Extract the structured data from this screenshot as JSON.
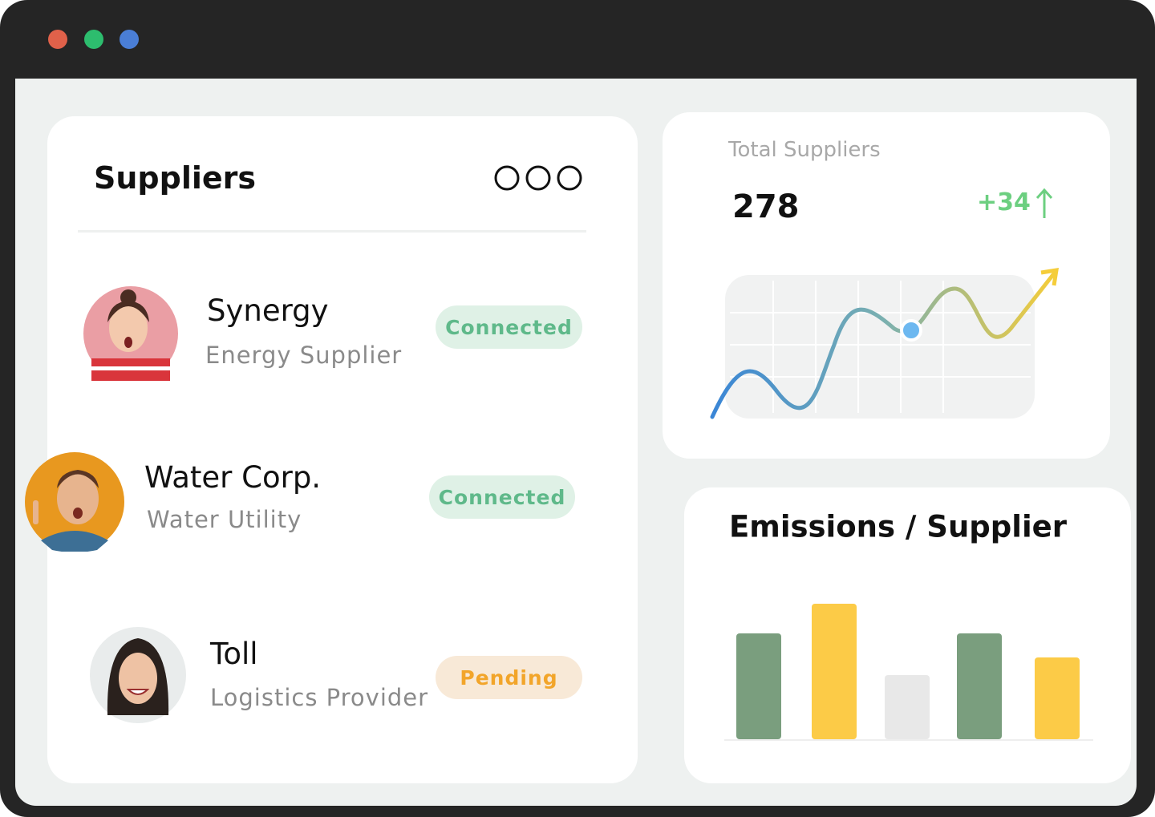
{
  "suppliers": {
    "title": "Suppliers",
    "items": [
      {
        "name": "Synergy",
        "type": "Energy Supplier",
        "status": "Connected"
      },
      {
        "name": "Water Corp.",
        "type": "Water Utility",
        "status": "Connected"
      },
      {
        "name": "Toll",
        "type": "Logistics Provider",
        "status": "Pending"
      }
    ]
  },
  "total": {
    "label": "Total Suppliers",
    "value": 278,
    "change": "+34"
  },
  "chart_data": {
    "type": "bar",
    "title": "Emissions / Supplier",
    "values": [
      132,
      169,
      80,
      132,
      102
    ],
    "colors": [
      "#7a9e7e",
      "#fccb47",
      "#e8e8e8",
      "#7a9e7e",
      "#fccb47"
    ]
  }
}
